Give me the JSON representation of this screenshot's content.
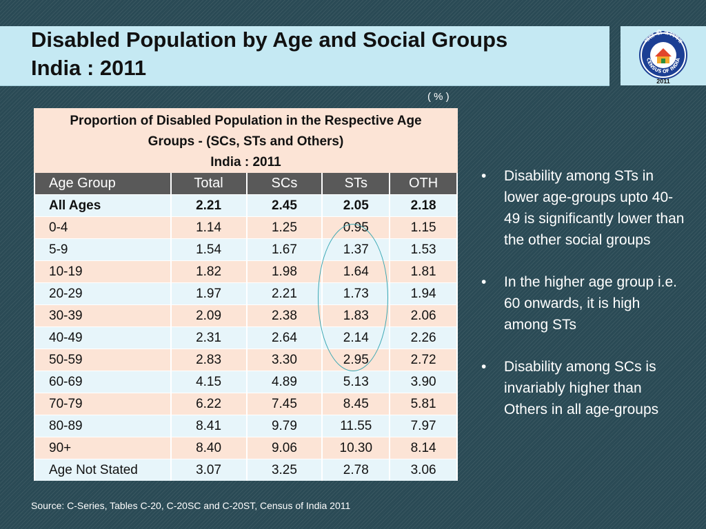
{
  "title": {
    "line1": "Disabled Population by Age and Social Groups",
    "line2": "India : 2011"
  },
  "logo": {
    "text_top": "भारत की जनगणना",
    "text_bottom": "CENSUS OF INDIA",
    "year": "2011"
  },
  "unit_label": "( % )",
  "table": {
    "caption_line1": "Proportion of Disabled Population in the Respective Age",
    "caption_line2": "Groups - (SCs, STs and Others)",
    "caption_line3": "India : 2011",
    "headers": [
      "Age Group",
      "Total",
      "SCs",
      "STs",
      "OTH"
    ],
    "rows": [
      [
        "All Ages",
        "2.21",
        "2.45",
        "2.05",
        "2.18"
      ],
      [
        "0-4",
        "1.14",
        "1.25",
        "0.95",
        "1.15"
      ],
      [
        "5-9",
        "1.54",
        "1.67",
        "1.37",
        "1.53"
      ],
      [
        "10-19",
        "1.82",
        "1.98",
        "1.64",
        "1.81"
      ],
      [
        "20-29",
        "1.97",
        "2.21",
        "1.73",
        "1.94"
      ],
      [
        "30-39",
        "2.09",
        "2.38",
        "1.83",
        "2.06"
      ],
      [
        "40-49",
        "2.31",
        "2.64",
        "2.14",
        "2.26"
      ],
      [
        "50-59",
        "2.83",
        "3.30",
        "2.95",
        "2.72"
      ],
      [
        "60-69",
        "4.15",
        "4.89",
        "5.13",
        "3.90"
      ],
      [
        "70-79",
        "6.22",
        "7.45",
        "8.45",
        "5.81"
      ],
      [
        "80-89",
        "8.41",
        "9.79",
        "11.55",
        "7.97"
      ],
      [
        "90+",
        "8.40",
        "9.06",
        "10.30",
        "8.14"
      ],
      [
        "Age Not Stated",
        "3.07",
        "3.25",
        "2.78",
        "3.06"
      ]
    ]
  },
  "bullets": [
    "Disability among STs in lower age-groups upto 40-49 is significantly lower than the other social groups",
    "In  the higher age group i.e. 60 onwards, it is high among STs",
    "Disability among SCs is invariably higher than Others in all age-groups"
  ],
  "bullet_symbol": "•",
  "source": "Source: C-Series, Tables C-20, C-20SC and C-20ST, Census of India 2011",
  "colors": {
    "background": "#2a4a55",
    "title_bar": "#c5e9f3",
    "header_row": "#595959",
    "row_light_blue": "#e7f5fa",
    "row_peach": "#fce4d6",
    "highlight_ellipse": "#3aa7b3"
  }
}
